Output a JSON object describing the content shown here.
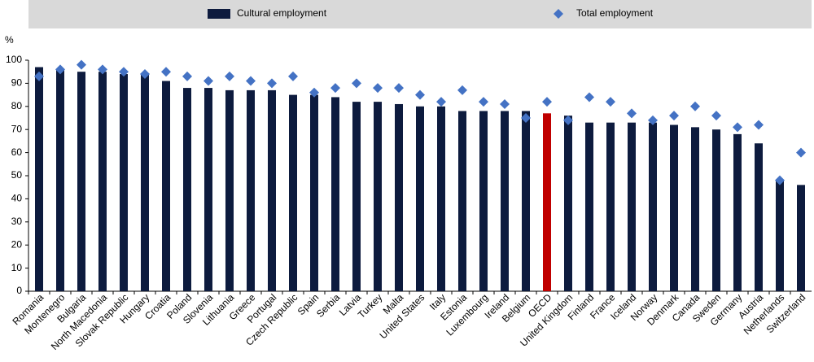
{
  "chart_data": {
    "type": "bar",
    "y_label": "%",
    "categories": [
      "Romania",
      "Montenegro",
      "Bulgaria",
      "North Macedonia",
      "Slovak Republic",
      "Hungary",
      "Croatia",
      "Poland",
      "Slovenia",
      "Lithuania",
      "Greece",
      "Portugal",
      "Czech Republic",
      "Spain",
      "Serbia",
      "Latvia",
      "Turkey",
      "Malta",
      "United States",
      "Italy",
      "Estonia",
      "Luxembourg",
      "Ireland",
      "Belgium",
      "OECD",
      "United Kingdom",
      "Finland",
      "France",
      "Iceland",
      "Norway",
      "Denmark",
      "Canada",
      "Sweden",
      "Germany",
      "Austria",
      "Netherlands",
      "Switzerland"
    ],
    "series": [
      {
        "name": "Cultural employment",
        "color": "#0d1b3e",
        "highlight_color": "#c00000",
        "highlight_index": 24,
        "mark": "bar",
        "values": [
          97,
          96,
          95,
          95,
          94,
          94,
          91,
          88,
          88,
          87,
          87,
          87,
          85,
          85,
          84,
          82,
          82,
          81,
          80,
          80,
          78,
          78,
          78,
          78,
          77,
          76,
          73,
          73,
          73,
          73,
          72,
          71,
          70,
          68,
          64,
          48,
          46
        ]
      },
      {
        "name": "Total employment",
        "color": "#4472c4",
        "mark": "diamond",
        "values": [
          93,
          96,
          98,
          96,
          95,
          94,
          95,
          93,
          91,
          93,
          91,
          90,
          93,
          86,
          88,
          90,
          88,
          88,
          85,
          82,
          87,
          82,
          81,
          75,
          82,
          74,
          84,
          82,
          77,
          74,
          76,
          80,
          76,
          71,
          72,
          48,
          60
        ]
      }
    ],
    "ylim": [
      0,
      100
    ],
    "yticks": [
      0,
      10,
      20,
      30,
      40,
      50,
      60,
      70,
      80,
      90,
      100
    ],
    "grid": false
  }
}
